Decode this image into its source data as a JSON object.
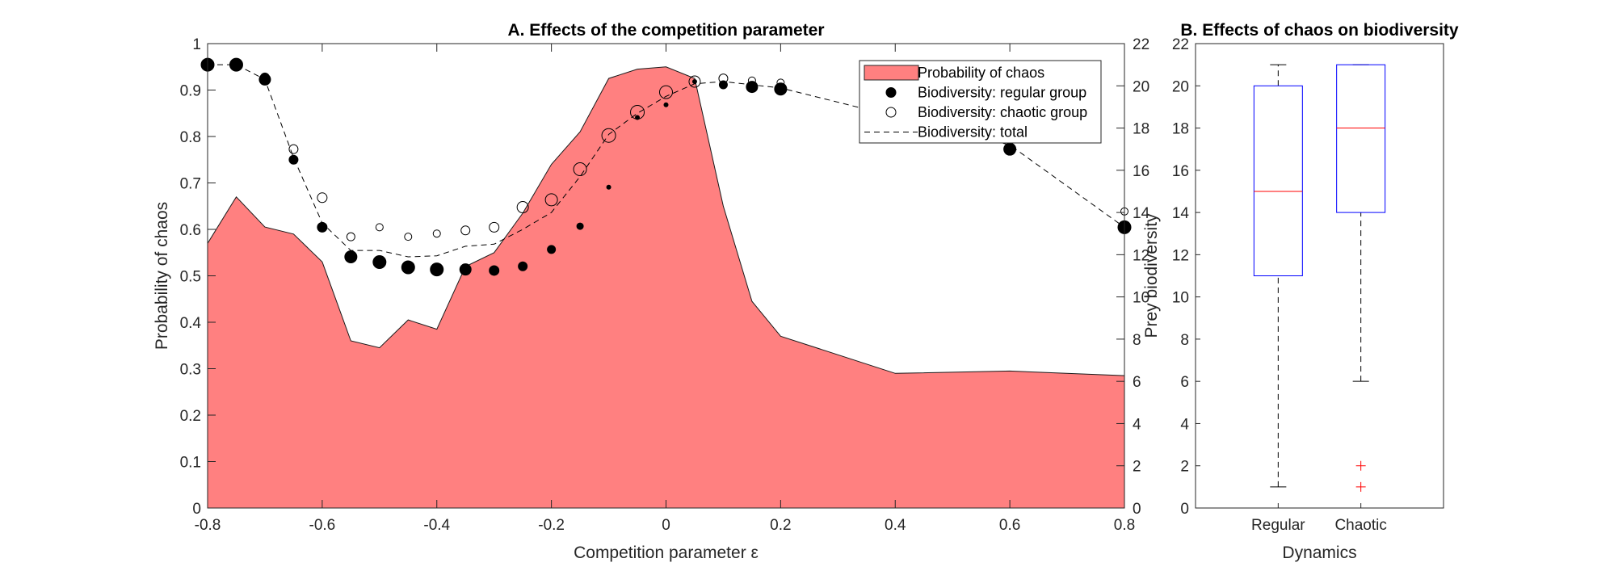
{
  "chart_data": [
    {
      "type": "area",
      "title": "A. Effects of the competition parameter",
      "xlabel": "Competition parameter ε",
      "ylabel": "Probability of chaos",
      "ylabel_right": "Prey biodiversity",
      "xlim": [
        -0.8,
        0.8
      ],
      "ylim": [
        0,
        1
      ],
      "ylim_right": [
        0,
        22
      ],
      "x_ticks": [
        "-0.8",
        "-0.6",
        "-0.4",
        "-0.2",
        "0",
        "0.2",
        "0.4",
        "0.6",
        "0.8"
      ],
      "y_ticks": [
        "0",
        "0.1",
        "0.2",
        "0.3",
        "0.4",
        "0.5",
        "0.6",
        "0.7",
        "0.8",
        "0.9",
        "1"
      ],
      "y_ticks_right": [
        "0",
        "2",
        "4",
        "6",
        "8",
        "10",
        "12",
        "14",
        "16",
        "18",
        "20",
        "22"
      ],
      "legend_position": "top-right",
      "colors": {
        "area": "#ff8080",
        "points": "#000000"
      },
      "series": [
        {
          "name": "Probability of chaos",
          "axis": "left",
          "x": [
            -0.8,
            -0.75,
            -0.7,
            -0.65,
            -0.6,
            -0.55,
            -0.5,
            -0.45,
            -0.4,
            -0.35,
            -0.3,
            -0.25,
            -0.2,
            -0.15,
            -0.1,
            -0.05,
            0,
            0.05,
            0.1,
            0.15,
            0.2,
            0.4,
            0.6,
            0.8
          ],
          "values": [
            0.57,
            0.67,
            0.605,
            0.59,
            0.53,
            0.36,
            0.345,
            0.405,
            0.385,
            0.52,
            0.55,
            0.635,
            0.74,
            0.81,
            0.925,
            0.945,
            0.95,
            0.925,
            0.65,
            0.445,
            0.37,
            0.29,
            0.295,
            0.285
          ]
        },
        {
          "name": "Biodiversity: regular group",
          "axis": "right",
          "x": [
            -0.8,
            -0.75,
            -0.7,
            -0.65,
            -0.6,
            -0.55,
            -0.5,
            -0.45,
            -0.4,
            -0.35,
            -0.3,
            -0.25,
            -0.2,
            -0.15,
            -0.1,
            -0.05,
            0,
            0.05,
            0.1,
            0.15,
            0.2,
            0.6,
            0.8
          ],
          "values": [
            21.0,
            21.0,
            20.3,
            16.5,
            13.3,
            11.9,
            11.65,
            11.4,
            11.3,
            11.3,
            11.25,
            11.45,
            12.25,
            13.35,
            15.2,
            18.5,
            19.1,
            20.2,
            20.05,
            19.95,
            19.85,
            17.0,
            13.3
          ],
          "marker_size": [
            16,
            16,
            14,
            11,
            12,
            15,
            16,
            16,
            16,
            14,
            12,
            11,
            10,
            8,
            5,
            5,
            5,
            5,
            10,
            14,
            15,
            15,
            16
          ]
        },
        {
          "name": "Biodiversity: chaotic group",
          "axis": "right",
          "x": [
            -0.8,
            -0.75,
            -0.7,
            -0.65,
            -0.6,
            -0.55,
            -0.5,
            -0.45,
            -0.4,
            -0.35,
            -0.3,
            -0.25,
            -0.2,
            -0.15,
            -0.1,
            -0.05,
            0,
            0.05,
            0.1,
            0.15,
            0.2,
            0.8
          ],
          "values": [
            21.0,
            21.0,
            20.4,
            17.0,
            14.7,
            12.85,
            13.3,
            12.85,
            13.0,
            13.15,
            13.3,
            14.25,
            14.6,
            16.05,
            17.65,
            18.75,
            19.7,
            20.2,
            20.35,
            20.25,
            20.15,
            14.05
          ],
          "marker_size": [
            11,
            11,
            10,
            10,
            11,
            9,
            8,
            8,
            8,
            10,
            11,
            13,
            14,
            15,
            16,
            16,
            15,
            13,
            10,
            8,
            8,
            8
          ]
        },
        {
          "name": "Biodiversity: total",
          "axis": "right",
          "x": [
            -0.8,
            -0.75,
            -0.7,
            -0.65,
            -0.6,
            -0.55,
            -0.5,
            -0.45,
            -0.4,
            -0.35,
            -0.3,
            -0.25,
            -0.2,
            -0.15,
            -0.1,
            -0.05,
            0,
            0.05,
            0.1,
            0.15,
            0.2,
            0.6,
            0.8
          ],
          "values": [
            21.0,
            21.0,
            20.3,
            16.6,
            13.5,
            12.2,
            12.2,
            11.9,
            11.95,
            12.4,
            12.5,
            13.2,
            14.0,
            15.7,
            17.7,
            18.7,
            19.5,
            20.1,
            20.2,
            20.05,
            19.9,
            17.2,
            13.3
          ]
        }
      ]
    },
    {
      "type": "box",
      "title": "B. Effects of chaos on biodiversity",
      "xlabel": "Dynamics",
      "ylim": [
        0,
        22
      ],
      "y_ticks": [
        "0",
        "2",
        "4",
        "6",
        "8",
        "10",
        "12",
        "14",
        "16",
        "18",
        "20",
        "22"
      ],
      "categories": [
        "Regular",
        "Chaotic"
      ],
      "colors": {
        "box": "#0000ff",
        "median": "#ff0000",
        "whisker": "#000000",
        "outlier": "#ff0000"
      },
      "boxes": [
        {
          "category": "Regular",
          "whisker_low": 1,
          "q1": 11,
          "median": 15,
          "q3": 20,
          "whisker_high": 21,
          "outliers": []
        },
        {
          "category": "Chaotic",
          "whisker_low": 6,
          "q1": 14,
          "median": 18,
          "q3": 21,
          "whisker_high": 21,
          "outliers": [
            1,
            2
          ]
        }
      ]
    }
  ]
}
